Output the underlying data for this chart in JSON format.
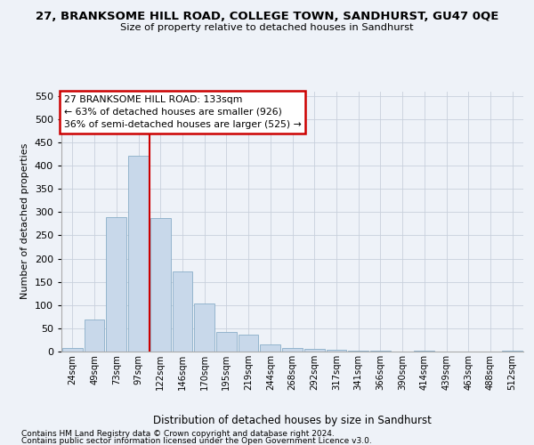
{
  "title": "27, BRANKSOME HILL ROAD, COLLEGE TOWN, SANDHURST, GU47 0QE",
  "subtitle": "Size of property relative to detached houses in Sandhurst",
  "xlabel": "Distribution of detached houses by size in Sandhurst",
  "ylabel": "Number of detached properties",
  "bar_color": "#c8d8ea",
  "bar_edge_color": "#89aec8",
  "grid_color": "#c8d0dc",
  "vline_color": "#cc0000",
  "annotation_box_edge": "#cc0000",
  "categories": [
    "24sqm",
    "49sqm",
    "73sqm",
    "97sqm",
    "122sqm",
    "146sqm",
    "170sqm",
    "195sqm",
    "219sqm",
    "244sqm",
    "268sqm",
    "292sqm",
    "317sqm",
    "341sqm",
    "366sqm",
    "390sqm",
    "414sqm",
    "439sqm",
    "463sqm",
    "488sqm",
    "512sqm"
  ],
  "values": [
    8,
    68,
    290,
    422,
    287,
    172,
    104,
    42,
    37,
    16,
    8,
    6,
    3,
    2,
    1,
    0,
    1,
    0,
    0,
    0,
    2
  ],
  "vline_x": 3.5,
  "annotation_line1": "27 BRANKSOME HILL ROAD: 133sqm",
  "annotation_line2": "← 63% of detached houses are smaller (926)",
  "annotation_line3": "36% of semi-detached houses are larger (525) →",
  "ylim_max": 560,
  "yticks": [
    0,
    50,
    100,
    150,
    200,
    250,
    300,
    350,
    400,
    450,
    500,
    550
  ],
  "footnote1": "Contains HM Land Registry data © Crown copyright and database right 2024.",
  "footnote2": "Contains public sector information licensed under the Open Government Licence v3.0.",
  "bg_color": "#eef2f8"
}
